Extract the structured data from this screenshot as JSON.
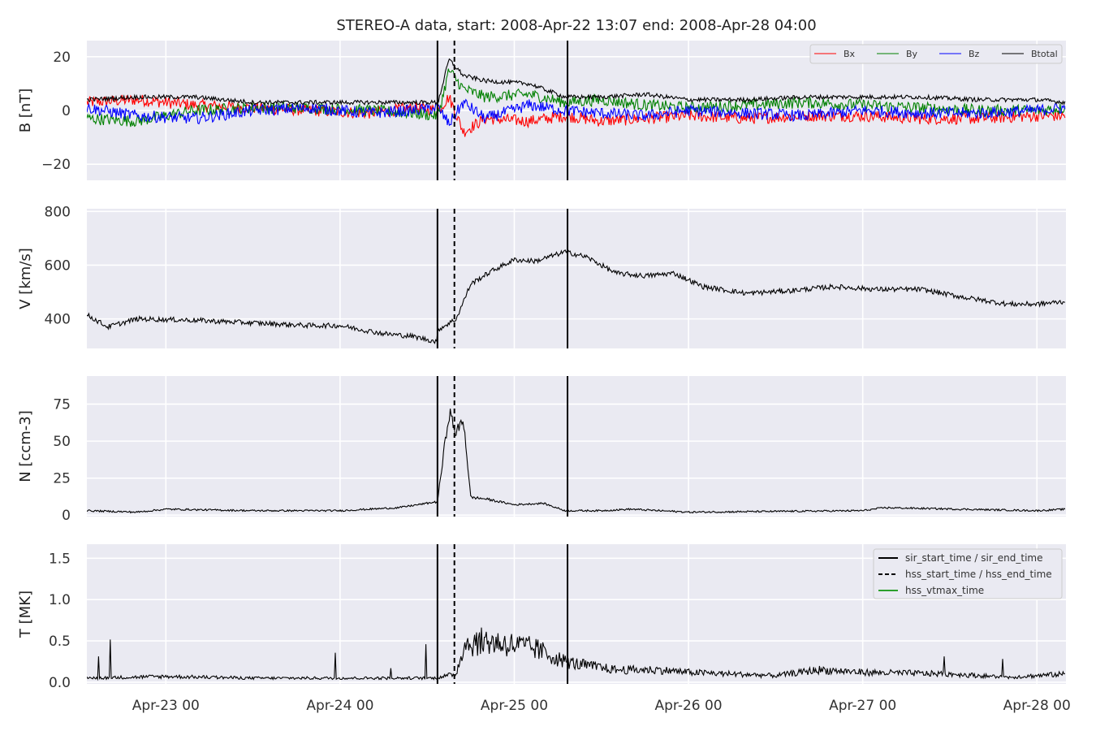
{
  "chart_data": {
    "title": "STEREO-A data, start: 2008-Apr-22 13:07  end: 2008-Apr-28 04:00",
    "time_range": {
      "start": "2008-04-22T13:07",
      "end": "2008-04-28T04:00"
    },
    "x_ticks": [
      "Apr-23 00",
      "Apr-24 00",
      "Apr-25 00",
      "Apr-26 00",
      "Apr-27 00",
      "Apr-28 00"
    ],
    "x_tick_times": [
      "2008-04-23T00:00",
      "2008-04-24T00:00",
      "2008-04-25T00:00",
      "2008-04-26T00:00",
      "2008-04-27T00:00",
      "2008-04-28T00:00"
    ],
    "event_lines": {
      "sir_start_time": "2008-04-24T13:25",
      "sir_end_time": "2008-04-25T07:20",
      "hss_start_time": "2008-04-24T15:45"
    },
    "colors": {
      "Bx": "#ff0000",
      "By": "#008000",
      "Bz": "#0000ff",
      "Btotal": "#000000",
      "background": "#eaeaf2",
      "grid": "#ffffff",
      "hss_vtmax": "#2ca02c"
    },
    "panels": [
      {
        "id": "B",
        "type": "line",
        "ylabel": "B [nT]",
        "ylim": [
          -26,
          26
        ],
        "yticks": [
          20,
          0,
          -20
        ],
        "ytick_labels": [
          "20",
          "0",
          "−20"
        ],
        "legend": {
          "placement": "top-right",
          "ncol": 4,
          "entries": [
            "Bx",
            "By",
            "Bz",
            "Btotal"
          ]
        },
        "series": [
          {
            "name": "Bx",
            "x": [
              "2008-04-22T13:07",
              "2008-04-22T20:00",
              "2008-04-23T04:00",
              "2008-04-23T12:00",
              "2008-04-23T20:00",
              "2008-04-24T04:00",
              "2008-04-24T10:00",
              "2008-04-24T13:30",
              "2008-04-24T15:00",
              "2008-04-24T17:00",
              "2008-04-24T20:00",
              "2008-04-25T02:00",
              "2008-04-25T07:00",
              "2008-04-25T12:00",
              "2008-04-25T18:00",
              "2008-04-26T00:00",
              "2008-04-26T08:00",
              "2008-04-26T16:00",
              "2008-04-27T00:00",
              "2008-04-27T08:00",
              "2008-04-27T16:00",
              "2008-04-28T00:00",
              "2008-04-28T04:00"
            ],
            "values": [
              3,
              4,
              2,
              1,
              0,
              -1,
              1,
              0,
              5,
              -8,
              -3,
              -4,
              -2,
              -4,
              -3,
              -2,
              -3,
              -2,
              -2,
              -3,
              -3,
              -2,
              -2
            ]
          },
          {
            "name": "By",
            "x": [
              "2008-04-22T13:07",
              "2008-04-22T20:00",
              "2008-04-23T04:00",
              "2008-04-23T12:00",
              "2008-04-23T20:00",
              "2008-04-24T04:00",
              "2008-04-24T10:00",
              "2008-04-24T13:30",
              "2008-04-24T15:00",
              "2008-04-24T17:00",
              "2008-04-24T20:00",
              "2008-04-25T02:00",
              "2008-04-25T07:00",
              "2008-04-25T12:00",
              "2008-04-25T18:00",
              "2008-04-26T00:00",
              "2008-04-26T08:00",
              "2008-04-26T16:00",
              "2008-04-27T00:00",
              "2008-04-27T08:00",
              "2008-04-27T16:00",
              "2008-04-28T00:00",
              "2008-04-28T04:00"
            ],
            "values": [
              -3,
              -4,
              0,
              1,
              1,
              0,
              -1,
              -2,
              15,
              8,
              5,
              6,
              3,
              4,
              2,
              1,
              2,
              3,
              2,
              1,
              0,
              0,
              1
            ]
          },
          {
            "name": "Bz",
            "x": [
              "2008-04-22T13:07",
              "2008-04-22T20:00",
              "2008-04-23T04:00",
              "2008-04-23T12:00",
              "2008-04-23T20:00",
              "2008-04-24T04:00",
              "2008-04-24T10:00",
              "2008-04-24T13:30",
              "2008-04-24T15:00",
              "2008-04-24T17:00",
              "2008-04-24T20:00",
              "2008-04-25T02:00",
              "2008-04-25T07:00",
              "2008-04-25T12:00",
              "2008-04-25T18:00",
              "2008-04-26T00:00",
              "2008-04-26T08:00",
              "2008-04-26T16:00",
              "2008-04-27T00:00",
              "2008-04-27T08:00",
              "2008-04-27T16:00",
              "2008-04-28T00:00",
              "2008-04-28T04:00"
            ],
            "values": [
              1,
              -2,
              -3,
              0,
              1,
              -1,
              0,
              1,
              -5,
              3,
              -3,
              2,
              0,
              -1,
              -2,
              0,
              -1,
              -2,
              0,
              -1,
              -1,
              0,
              1
            ]
          },
          {
            "name": "Btotal",
            "x": [
              "2008-04-22T13:07",
              "2008-04-22T20:00",
              "2008-04-23T04:00",
              "2008-04-23T12:00",
              "2008-04-23T20:00",
              "2008-04-24T04:00",
              "2008-04-24T10:00",
              "2008-04-24T13:30",
              "2008-04-24T15:00",
              "2008-04-24T17:00",
              "2008-04-24T20:00",
              "2008-04-25T02:00",
              "2008-04-25T07:00",
              "2008-04-25T12:00",
              "2008-04-25T18:00",
              "2008-04-26T00:00",
              "2008-04-26T08:00",
              "2008-04-26T16:00",
              "2008-04-27T00:00",
              "2008-04-27T08:00",
              "2008-04-27T16:00",
              "2008-04-28T00:00",
              "2008-04-28T04:00"
            ],
            "values": [
              4,
              5,
              5,
              3,
              3,
              3,
              3,
              3,
              19,
              13,
              11,
              10,
              5,
              5,
              6,
              4,
              4,
              5,
              5,
              5,
              4,
              4,
              3
            ]
          }
        ]
      },
      {
        "id": "V",
        "type": "line",
        "ylabel": "V [km/s]",
        "ylim": [
          290,
          810
        ],
        "yticks": [
          800,
          600,
          400
        ],
        "ytick_labels": [
          "800",
          "600",
          "400"
        ],
        "series": [
          {
            "name": "V",
            "x": [
              "2008-04-22T13:07",
              "2008-04-22T16:00",
              "2008-04-22T20:00",
              "2008-04-23T04:00",
              "2008-04-23T12:00",
              "2008-04-23T20:00",
              "2008-04-24T00:00",
              "2008-04-24T06:00",
              "2008-04-24T10:00",
              "2008-04-24T13:20",
              "2008-04-24T13:30",
              "2008-04-24T16:00",
              "2008-04-24T18:00",
              "2008-04-24T21:00",
              "2008-04-25T00:00",
              "2008-04-25T03:00",
              "2008-04-25T07:00",
              "2008-04-25T10:00",
              "2008-04-25T14:00",
              "2008-04-25T18:00",
              "2008-04-25T22:00",
              "2008-04-26T02:00",
              "2008-04-26T08:00",
              "2008-04-26T14:00",
              "2008-04-26T20:00",
              "2008-04-27T02:00",
              "2008-04-27T08:00",
              "2008-04-27T14:00",
              "2008-04-27T20:00",
              "2008-04-28T00:00",
              "2008-04-28T04:00"
            ],
            "values": [
              415,
              370,
              400,
              395,
              385,
              375,
              375,
              345,
              335,
              315,
              360,
              400,
              530,
              580,
              620,
              615,
              650,
              630,
              570,
              560,
              570,
              520,
              495,
              505,
              520,
              510,
              510,
              480,
              455,
              455,
              465
            ]
          }
        ]
      },
      {
        "id": "N",
        "type": "line",
        "ylabel": "N [ccm-3]",
        "ylim": [
          -1,
          94
        ],
        "yticks": [
          75,
          50,
          25,
          0
        ],
        "ytick_labels": [
          "75",
          "50",
          "25",
          "0"
        ],
        "series": [
          {
            "name": "N",
            "x": [
              "2008-04-22T13:07",
              "2008-04-22T20:00",
              "2008-04-23T00:00",
              "2008-04-23T12:00",
              "2008-04-24T00:00",
              "2008-04-24T08:00",
              "2008-04-24T12:00",
              "2008-04-24T13:25",
              "2008-04-24T14:30",
              "2008-04-24T15:00",
              "2008-04-24T16:00",
              "2008-04-24T17:00",
              "2008-04-24T18:00",
              "2008-04-24T20:00",
              "2008-04-25T00:00",
              "2008-04-25T04:00",
              "2008-04-25T07:00",
              "2008-04-25T12:00",
              "2008-04-25T16:00",
              "2008-04-26T00:00",
              "2008-04-27T00:00",
              "2008-04-27T03:00",
              "2008-04-28T00:00",
              "2008-04-28T04:00"
            ],
            "values": [
              3,
              2,
              4,
              3,
              3,
              5,
              8,
              9,
              50,
              70,
              55,
              65,
              12,
              11,
              7,
              8,
              3,
              3,
              4,
              2,
              3,
              5,
              3,
              4
            ]
          }
        ]
      },
      {
        "id": "T",
        "type": "line",
        "ylabel": "T [MK]",
        "ylim": [
          -0.02,
          1.67
        ],
        "yticks": [
          1.5,
          1.0,
          0.5,
          0.0
        ],
        "ytick_labels": [
          "1.5",
          "1.0",
          "0.5",
          "0.0"
        ],
        "legend": {
          "placement": "top-right",
          "ncol": 1,
          "entries": [
            "sir_start_time / sir_end_time",
            "hss_start_time / hss_end_time",
            "hss_vtmax_time"
          ]
        },
        "series": [
          {
            "name": "T",
            "x": [
              "2008-04-22T13:07",
              "2008-04-23T00:00",
              "2008-04-23T12:00",
              "2008-04-24T00:00",
              "2008-04-24T13:00",
              "2008-04-24T16:00",
              "2008-04-24T17:00",
              "2008-04-24T20:00",
              "2008-04-25T00:00",
              "2008-04-25T03:00",
              "2008-04-25T07:00",
              "2008-04-25T10:00",
              "2008-04-25T14:00",
              "2008-04-25T20:00",
              "2008-04-26T00:00",
              "2008-04-26T12:00",
              "2008-04-26T18:00",
              "2008-04-27T00:00",
              "2008-04-27T12:00",
              "2008-04-27T20:00",
              "2008-04-28T00:00",
              "2008-04-28T04:00"
            ],
            "values": [
              0.05,
              0.07,
              0.05,
              0.05,
              0.05,
              0.1,
              0.45,
              0.5,
              0.45,
              0.4,
              0.25,
              0.2,
              0.15,
              0.15,
              0.12,
              0.08,
              0.15,
              0.12,
              0.1,
              0.06,
              0.08,
              0.1
            ]
          }
        ]
      }
    ]
  }
}
